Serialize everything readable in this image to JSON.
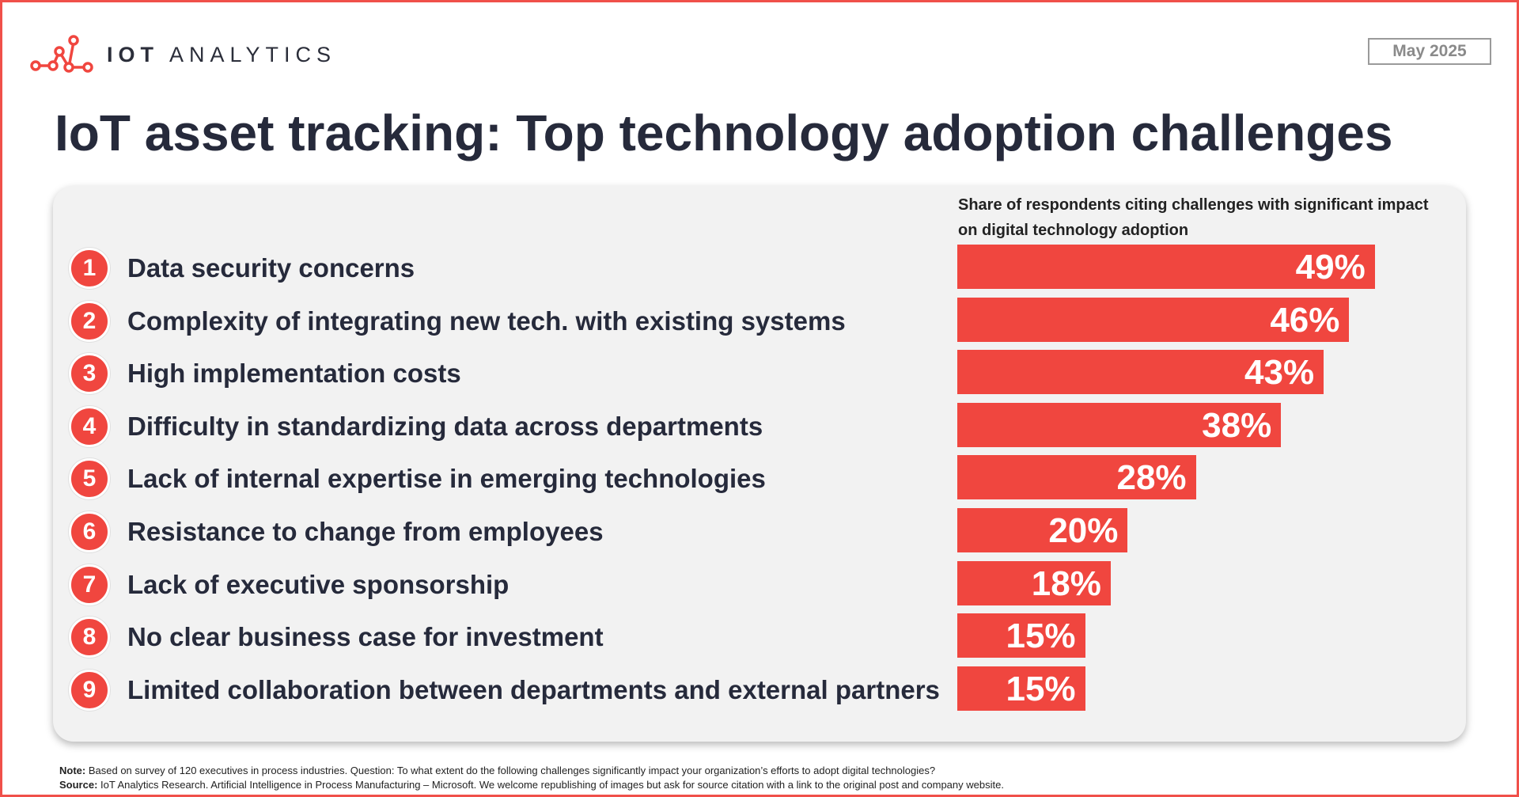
{
  "header": {
    "brand_bold": "IOT",
    "brand_light": "ANALYTICS",
    "date": "May 2025"
  },
  "page_title": "IoT asset tracking: Top technology adoption challenges",
  "colors": {
    "accent": "#f0463f",
    "frame": "#f0504a",
    "panel": "#f2f2f2",
    "text": "#262a3b"
  },
  "chart_data": {
    "type": "bar",
    "orientation": "horizontal",
    "title": "IoT asset tracking: Top technology adoption challenges",
    "subtitle": "Share of respondents citing challenges with significant impact on digital technology adoption",
    "xlim": [
      0,
      100
    ],
    "rank_labels": [
      "1",
      "2",
      "3",
      "4",
      "5",
      "6",
      "7",
      "8",
      "9"
    ],
    "categories": [
      "Data security concerns",
      "Complexity of integrating new tech. with existing systems",
      "High implementation costs",
      "Difficulty in standardizing data across departments",
      "Lack of internal expertise in emerging technologies",
      "Resistance to change from employees",
      "Lack of executive sponsorship",
      "No clear business case for investment",
      "Limited collaboration between departments and external partners"
    ],
    "values": [
      49,
      46,
      43,
      38,
      28,
      20,
      18,
      15,
      15
    ],
    "value_labels": [
      "49%",
      "46%",
      "43%",
      "38%",
      "28%",
      "20%",
      "18%",
      "15%",
      "15%"
    ]
  },
  "notes": {
    "note_label": "Note:",
    "note_text": "Based on survey of 120 executives in process industries. Question: To what extent do the following challenges significantly impact your organization’s efforts to adopt digital technologies?",
    "source_label": "Source:",
    "source_text": "IoT Analytics Research. Artificial Intelligence in Process Manufacturing – Microsoft. We welcome republishing of images but ask for source citation with a link to the original post and company website."
  }
}
